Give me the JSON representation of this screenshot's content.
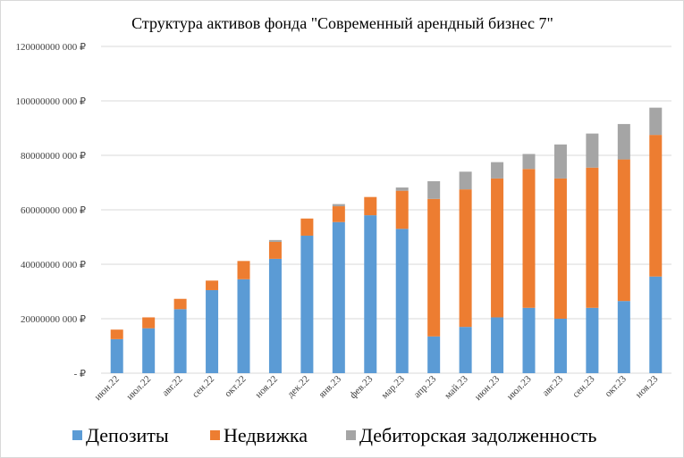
{
  "chart_data": {
    "type": "bar",
    "stacked": true,
    "title": "Структура активов фонда \"Современный арендный бизнес 7\"",
    "xlabel": "",
    "ylabel": "",
    "ylim": [
      0,
      120000000
    ],
    "y_tick_values": [
      0,
      20000000,
      40000000,
      60000000,
      80000000,
      100000000,
      120000000
    ],
    "y_tick_labels": [
      "- ₽",
      "20000000 000 ₽",
      "40000000 000 ₽",
      "60000000 000 ₽",
      "80000000 000 ₽",
      "100000000 000 ₽",
      "120000000 000 ₽"
    ],
    "grid": true,
    "legend_position": "bottom",
    "categories": [
      "июн.22",
      "июл.22",
      "авг.22",
      "сен.22",
      "окт.22",
      "ноя.22",
      "дек.22",
      "янв.23",
      "фев.23",
      "мар.23",
      "апр.23",
      "май.23",
      "июн.23",
      "июл.23",
      "авг.23",
      "сен.23",
      "окт.23",
      "ноя.23"
    ],
    "series": [
      {
        "name": "Депозиты",
        "color": "#5b9bd5",
        "values": [
          12500000,
          16500000,
          23500000,
          30500000,
          34500000,
          42000000,
          50500000,
          55500000,
          58000000,
          53000000,
          13500000,
          17000000,
          20500000,
          24000000,
          20000000,
          24000000,
          26500000,
          35500000
        ]
      },
      {
        "name": "Недвижка",
        "color": "#ed7d31",
        "values": [
          3500000,
          4000000,
          3800000,
          3500000,
          6700000,
          6200000,
          6300000,
          5800000,
          6700000,
          14000000,
          50500000,
          50500000,
          51000000,
          51000000,
          51500000,
          51500000,
          52000000,
          52000000
        ]
      },
      {
        "name": "Дебиторская задолженность",
        "color": "#a5a5a5",
        "values": [
          0,
          0,
          0,
          0,
          0,
          700000,
          0,
          800000,
          0,
          1200000,
          6500000,
          6500000,
          6000000,
          5500000,
          12500000,
          12500000,
          13000000,
          10000000
        ]
      }
    ]
  }
}
